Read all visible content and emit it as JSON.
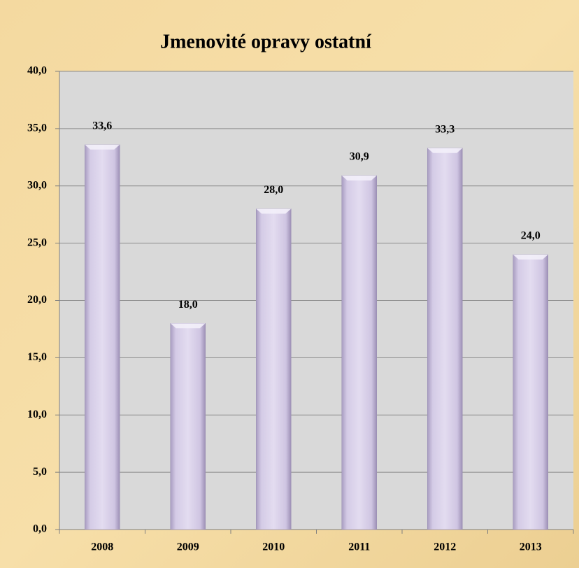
{
  "chart_data": {
    "type": "bar",
    "title": "Jmenovité opravy ostatní",
    "categories": [
      "2008",
      "2009",
      "2010",
      "2011",
      "2012",
      "2013"
    ],
    "values": [
      33.6,
      18.0,
      28.0,
      30.9,
      33.3,
      24.0
    ],
    "value_labels": [
      "33,6",
      "18,0",
      "28,0",
      "30,9",
      "33,3",
      "24,0"
    ],
    "color": "#d9d0ea",
    "ylim": [
      0,
      40
    ],
    "yticks": [
      {
        "value": 0,
        "label": "0,0"
      },
      {
        "value": 5,
        "label": "5,0"
      },
      {
        "value": 10,
        "label": "10,0"
      },
      {
        "value": 15,
        "label": "15,0"
      },
      {
        "value": 20,
        "label": "20,0"
      },
      {
        "value": 25,
        "label": "25,0"
      },
      {
        "value": 30,
        "label": "30,0"
      },
      {
        "value": 35,
        "label": "35,0"
      },
      {
        "value": 40,
        "label": "40,0"
      }
    ],
    "grid": true
  }
}
